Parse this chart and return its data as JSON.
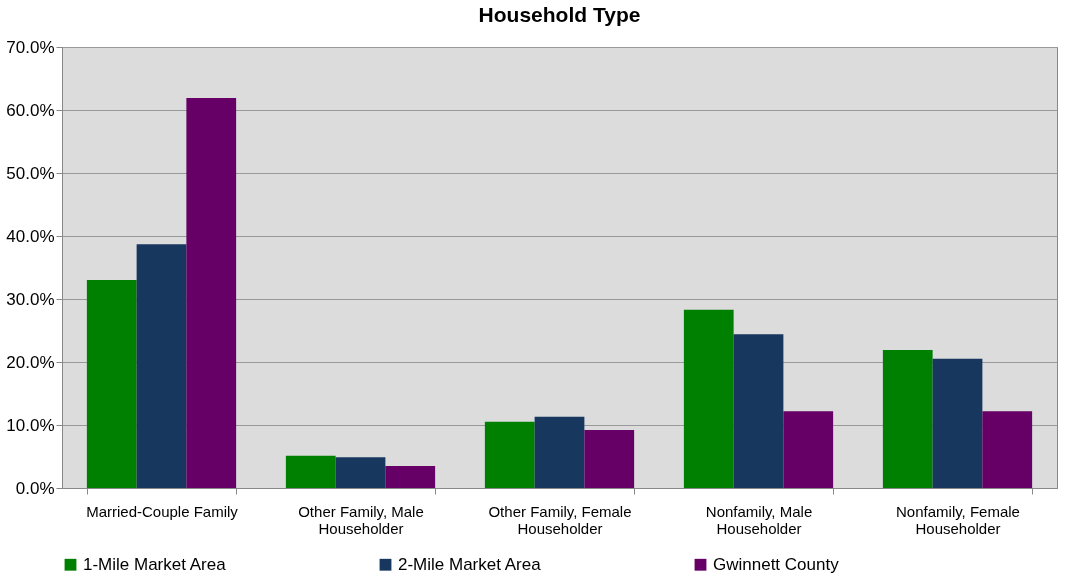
{
  "chart_data": {
    "type": "bar",
    "title": "Household Type",
    "categories": [
      "Married-Couple Family",
      "Other Family, Male Householder",
      "Other Family, Female Householder",
      "Nonfamily, Male Householder",
      "Nonfamily, Female Householder"
    ],
    "series": [
      {
        "name": "1-Mile Market Area",
        "color": "#008000",
        "values": [
          33.0,
          5.1,
          10.5,
          28.3,
          21.9
        ]
      },
      {
        "name": "2-Mile Market Area",
        "color": "#17375e",
        "values": [
          38.7,
          4.9,
          11.3,
          24.4,
          20.5
        ]
      },
      {
        "name": "Gwinnett County",
        "color": "#660066",
        "values": [
          61.9,
          3.5,
          9.2,
          12.2,
          12.2
        ]
      }
    ],
    "ylim": [
      0,
      70
    ],
    "yticks": [
      {
        "value": 0,
        "label": "0.0%"
      },
      {
        "value": 10,
        "label": "10.0%"
      },
      {
        "value": 20,
        "label": "20.0%"
      },
      {
        "value": 30,
        "label": "30.0%"
      },
      {
        "value": 40,
        "label": "40.0%"
      },
      {
        "value": 50,
        "label": "50.0%"
      },
      {
        "value": 60,
        "label": "60.0%"
      },
      {
        "value": 70,
        "label": "70.0%"
      }
    ],
    "grid": "y",
    "legend": "bottom"
  }
}
